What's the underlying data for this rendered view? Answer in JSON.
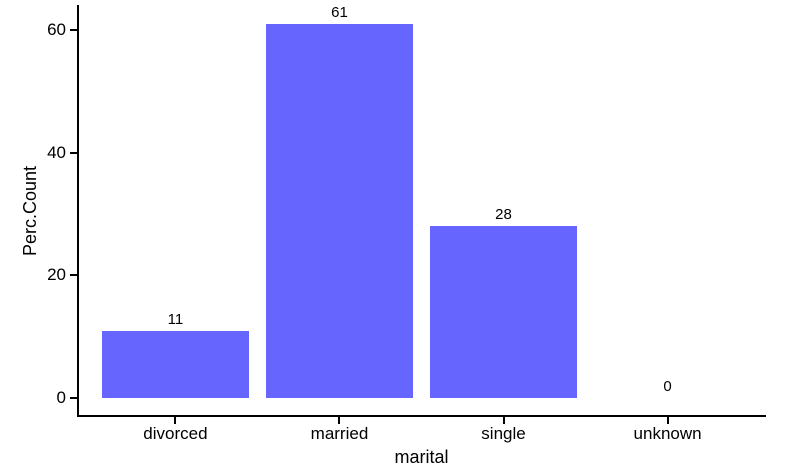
{
  "chart_data": {
    "type": "bar",
    "categories": [
      "divorced",
      "married",
      "single",
      "unknown"
    ],
    "values": [
      11,
      61,
      28,
      0
    ],
    "bar_labels": [
      "11",
      "61",
      "28",
      "0"
    ],
    "title": "",
    "xlabel": "marital",
    "ylabel": "Perc.Count",
    "yticks": [
      0,
      20,
      40,
      60
    ],
    "ytick_labels": [
      "0",
      "20",
      "40",
      "60"
    ],
    "ylim": [
      0,
      61
    ],
    "legend_position": "none",
    "grid": false,
    "colors": {
      "bar_fill": "#6666FF",
      "axis_line": "#000000",
      "text": "#000000",
      "background": "#FFFFFF"
    }
  }
}
